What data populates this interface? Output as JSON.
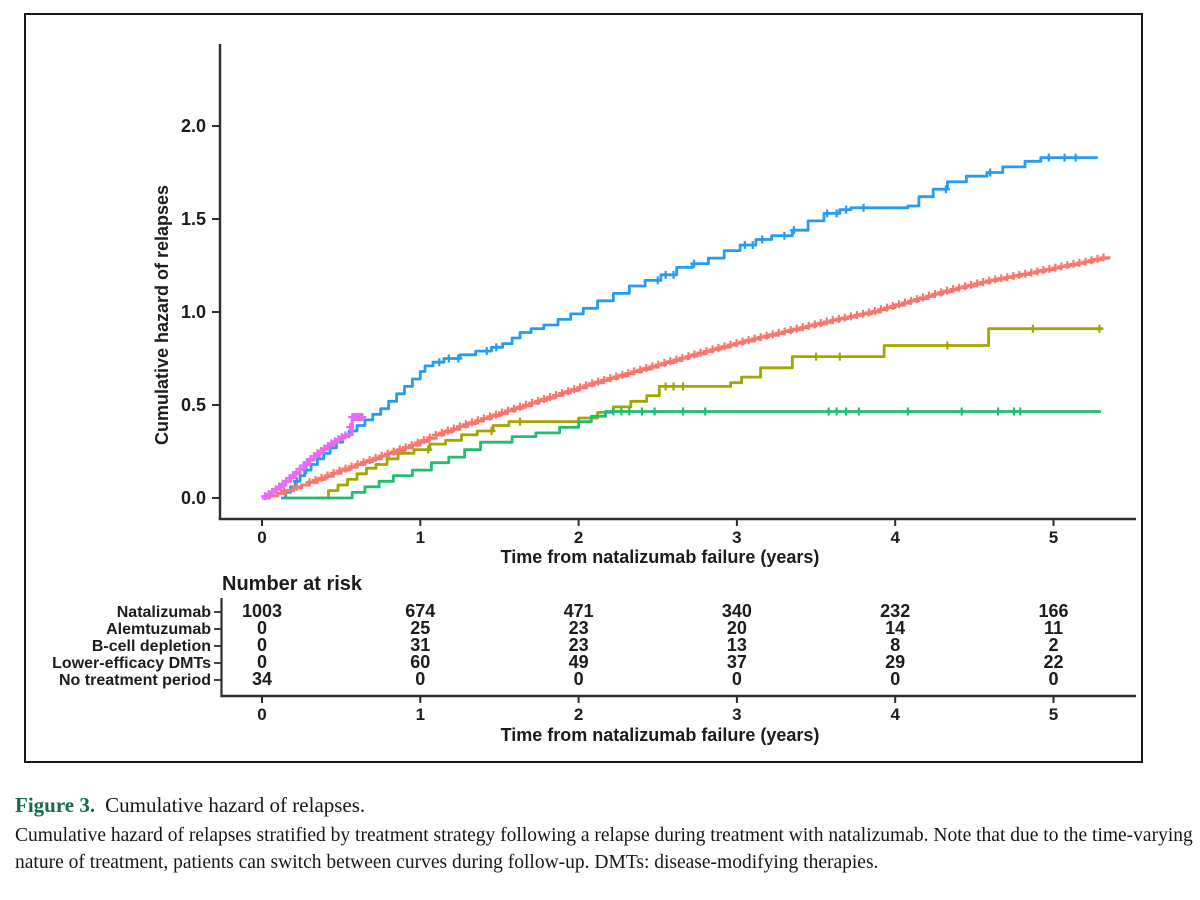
{
  "figure": {
    "caption_label": "Figure 3.",
    "caption_title": "Cumulative hazard of relapses.",
    "caption_body": "Cumulative hazard of relapses stratified by treatment strategy following a relapse during treatment with natalizumab. Note that due to the time-varying nature of treatment, patients can switch between curves during follow-up. DMTs: disease-modifying therapies.",
    "caption_label_color": "#176b4a"
  },
  "chart_data": {
    "type": "line",
    "subtype": "cumulative-hazard-step-curves",
    "title": "",
    "xlabel": "Time from natalizumab failure (years)",
    "ylabel": "Cumulative hazard of relapses",
    "xlim": [
      0,
      5.45
    ],
    "ylim": [
      0,
      2.45
    ],
    "xticks": [
      "0",
      "1",
      "2",
      "3",
      "4",
      "5"
    ],
    "yticks": [
      "0.0",
      "0.5",
      "1.0",
      "1.5",
      "2.0"
    ],
    "grid": false,
    "legend_position": "left-of-risk-table",
    "draw_order": [
      3,
      1,
      2,
      0,
      4
    ],
    "series": [
      {
        "id": "natalizumab",
        "name": "Natalizumab",
        "color": "#F8766D",
        "render": "fine",
        "dt": 0.05,
        "width": 3,
        "points": [
          [
            0,
            0
          ],
          [
            0.1,
            0.025
          ],
          [
            0.2,
            0.055
          ],
          [
            0.35,
            0.1
          ],
          [
            0.5,
            0.15
          ],
          [
            0.65,
            0.195
          ],
          [
            0.8,
            0.24
          ],
          [
            0.95,
            0.285
          ],
          [
            1.1,
            0.34
          ],
          [
            1.3,
            0.4
          ],
          [
            1.5,
            0.455
          ],
          [
            1.7,
            0.51
          ],
          [
            1.9,
            0.565
          ],
          [
            2.1,
            0.62
          ],
          [
            2.35,
            0.68
          ],
          [
            2.6,
            0.74
          ],
          [
            2.85,
            0.8
          ],
          [
            3.1,
            0.855
          ],
          [
            3.35,
            0.905
          ],
          [
            3.6,
            0.955
          ],
          [
            3.85,
            1.0
          ],
          [
            4.1,
            1.06
          ],
          [
            4.35,
            1.12
          ],
          [
            4.6,
            1.17
          ],
          [
            4.85,
            1.21
          ],
          [
            5.05,
            1.245
          ],
          [
            5.2,
            1.27
          ],
          [
            5.35,
            1.3
          ]
        ],
        "censors": [
          0.14,
          0.22
        ],
        "censor_dense": [
          {
            "from": 0.3,
            "to": 5.33,
            "step": 0.038
          }
        ]
      },
      {
        "id": "alemtuzumab",
        "name": "Alemtuzumab",
        "color": "#A3A500",
        "render": "step",
        "width": 2.8,
        "points": [
          [
            0.35,
            0
          ],
          [
            0.42,
            0.04
          ],
          [
            0.48,
            0.07
          ],
          [
            0.54,
            0.1
          ],
          [
            0.6,
            0.13
          ],
          [
            0.66,
            0.16
          ],
          [
            0.72,
            0.18
          ],
          [
            0.79,
            0.21
          ],
          [
            0.86,
            0.24
          ],
          [
            0.96,
            0.26
          ],
          [
            1.06,
            0.29
          ],
          [
            1.16,
            0.31
          ],
          [
            1.26,
            0.34
          ],
          [
            1.36,
            0.36
          ],
          [
            1.46,
            0.39
          ],
          [
            1.56,
            0.41
          ],
          [
            2.0,
            0.43
          ],
          [
            2.12,
            0.46
          ],
          [
            2.22,
            0.49
          ],
          [
            2.33,
            0.52
          ],
          [
            2.43,
            0.55
          ],
          [
            2.51,
            0.6
          ],
          [
            2.96,
            0.62
          ],
          [
            3.03,
            0.65
          ],
          [
            3.15,
            0.7
          ],
          [
            3.35,
            0.76
          ],
          [
            3.93,
            0.82
          ],
          [
            4.59,
            0.91
          ],
          [
            5.31,
            0.91
          ]
        ],
        "censors": [
          1.05,
          1.45,
          1.63,
          2.55,
          2.6,
          2.66,
          3.5,
          3.65,
          4.33,
          4.87,
          5.29
        ],
        "censor_dense": []
      },
      {
        "id": "b-cell-depletion",
        "name": "B-cell depletion",
        "color": "#1FBE71",
        "render": "step",
        "width": 2.8,
        "points": [
          [
            0.15,
            0
          ],
          [
            0.57,
            0.03
          ],
          [
            0.65,
            0.06
          ],
          [
            0.74,
            0.09
          ],
          [
            0.83,
            0.12
          ],
          [
            0.95,
            0.15
          ],
          [
            1.07,
            0.19
          ],
          [
            1.18,
            0.22
          ],
          [
            1.28,
            0.26
          ],
          [
            1.38,
            0.3
          ],
          [
            1.58,
            0.33
          ],
          [
            1.73,
            0.35
          ],
          [
            1.88,
            0.38
          ],
          [
            2.0,
            0.41
          ],
          [
            2.08,
            0.44
          ],
          [
            2.17,
            0.465
          ],
          [
            5.3,
            0.465
          ]
        ],
        "censors": [
          2.22,
          2.27,
          2.32,
          2.4,
          2.48,
          2.66,
          2.8,
          3.58,
          3.63,
          3.69,
          3.77,
          4.08,
          4.42,
          4.65,
          4.75,
          4.79
        ],
        "censor_dense": []
      },
      {
        "id": "lower-efficacy-dmts",
        "name": "Lower-efficacy DMTs",
        "color": "#259CEF",
        "render": "step",
        "width": 2.8,
        "points": [
          [
            0.12,
            0
          ],
          [
            0.15,
            0.03
          ],
          [
            0.18,
            0.06
          ],
          [
            0.21,
            0.09
          ],
          [
            0.24,
            0.12
          ],
          [
            0.27,
            0.15
          ],
          [
            0.31,
            0.18
          ],
          [
            0.35,
            0.21
          ],
          [
            0.39,
            0.24
          ],
          [
            0.43,
            0.27
          ],
          [
            0.47,
            0.3
          ],
          [
            0.51,
            0.33
          ],
          [
            0.55,
            0.36
          ],
          [
            0.6,
            0.39
          ],
          [
            0.65,
            0.42
          ],
          [
            0.7,
            0.45
          ],
          [
            0.75,
            0.48
          ],
          [
            0.8,
            0.52
          ],
          [
            0.85,
            0.56
          ],
          [
            0.9,
            0.6
          ],
          [
            0.95,
            0.64
          ],
          [
            1.0,
            0.68
          ],
          [
            1.03,
            0.71
          ],
          [
            1.08,
            0.73
          ],
          [
            1.15,
            0.75
          ],
          [
            1.25,
            0.77
          ],
          [
            1.35,
            0.79
          ],
          [
            1.45,
            0.81
          ],
          [
            1.52,
            0.83
          ],
          [
            1.58,
            0.86
          ],
          [
            1.63,
            0.89
          ],
          [
            1.7,
            0.91
          ],
          [
            1.78,
            0.93
          ],
          [
            1.87,
            0.96
          ],
          [
            1.95,
            0.99
          ],
          [
            2.03,
            1.02
          ],
          [
            2.12,
            1.06
          ],
          [
            2.22,
            1.1
          ],
          [
            2.32,
            1.14
          ],
          [
            2.42,
            1.17
          ],
          [
            2.52,
            1.2
          ],
          [
            2.62,
            1.24
          ],
          [
            2.72,
            1.26
          ],
          [
            2.82,
            1.29
          ],
          [
            2.92,
            1.33
          ],
          [
            3.02,
            1.36
          ],
          [
            3.12,
            1.39
          ],
          [
            3.22,
            1.41
          ],
          [
            3.35,
            1.44
          ],
          [
            3.45,
            1.49
          ],
          [
            3.55,
            1.53
          ],
          [
            3.65,
            1.55
          ],
          [
            3.72,
            1.56
          ],
          [
            4.08,
            1.57
          ],
          [
            4.15,
            1.62
          ],
          [
            4.24,
            1.66
          ],
          [
            4.33,
            1.7
          ],
          [
            4.45,
            1.73
          ],
          [
            4.58,
            1.75
          ],
          [
            4.68,
            1.78
          ],
          [
            4.82,
            1.81
          ],
          [
            4.92,
            1.83
          ],
          [
            5.28,
            1.83
          ]
        ],
        "censors": [
          0.22,
          0.28,
          1.12,
          1.18,
          1.24,
          1.42,
          1.48,
          2.5,
          2.55,
          2.6,
          2.73,
          3.05,
          3.1,
          3.16,
          3.3,
          3.36,
          3.57,
          3.63,
          3.69,
          3.8,
          4.32,
          4.6,
          4.97,
          5.07,
          5.14
        ],
        "censor_dense": []
      },
      {
        "id": "no-treatment-period",
        "name": "No treatment period",
        "color": "#E76BF3",
        "render": "fine",
        "dt": 0.03,
        "width": 3.2,
        "points": [
          [
            0,
            0
          ],
          [
            0.05,
            0.025
          ],
          [
            0.1,
            0.055
          ],
          [
            0.15,
            0.09
          ],
          [
            0.2,
            0.125
          ],
          [
            0.25,
            0.165
          ],
          [
            0.3,
            0.205
          ],
          [
            0.35,
            0.24
          ],
          [
            0.4,
            0.27
          ],
          [
            0.44,
            0.295
          ],
          [
            0.48,
            0.315
          ],
          [
            0.52,
            0.335
          ],
          [
            0.555,
            0.345
          ],
          [
            0.56,
            0.435
          ],
          [
            0.64,
            0.435
          ]
        ],
        "censors": [],
        "censor_dense": [
          {
            "from": 0.02,
            "to": 0.545,
            "step": 0.022
          },
          {
            "from": 0.557,
            "to": 0.635,
            "step": 0.013
          }
        ]
      }
    ]
  },
  "risk_table": {
    "title": "Number at risk",
    "xlabel": "Time from natalizumab failure (years)",
    "xticks": [
      "0",
      "1",
      "2",
      "3",
      "4",
      "5"
    ],
    "rows": [
      {
        "label": "Natalizumab",
        "color": "#F8766D",
        "values": [
          "1003",
          "674",
          "471",
          "340",
          "232",
          "166"
        ]
      },
      {
        "label": "Alemtuzumab",
        "color": "#A3A500",
        "values": [
          "0",
          "25",
          "23",
          "20",
          "14",
          "11"
        ]
      },
      {
        "label": "B-cell depletion",
        "color": "#1FBE71",
        "values": [
          "0",
          "31",
          "23",
          "13",
          "8",
          "2"
        ]
      },
      {
        "label": "Lower-efficacy DMTs",
        "color": "#259CEF",
        "values": [
          "0",
          "60",
          "49",
          "37",
          "29",
          "22"
        ]
      },
      {
        "label": "No treatment period",
        "color": "#E76BF3",
        "values": [
          "34",
          "0",
          "0",
          "0",
          "0",
          "0"
        ]
      }
    ]
  }
}
